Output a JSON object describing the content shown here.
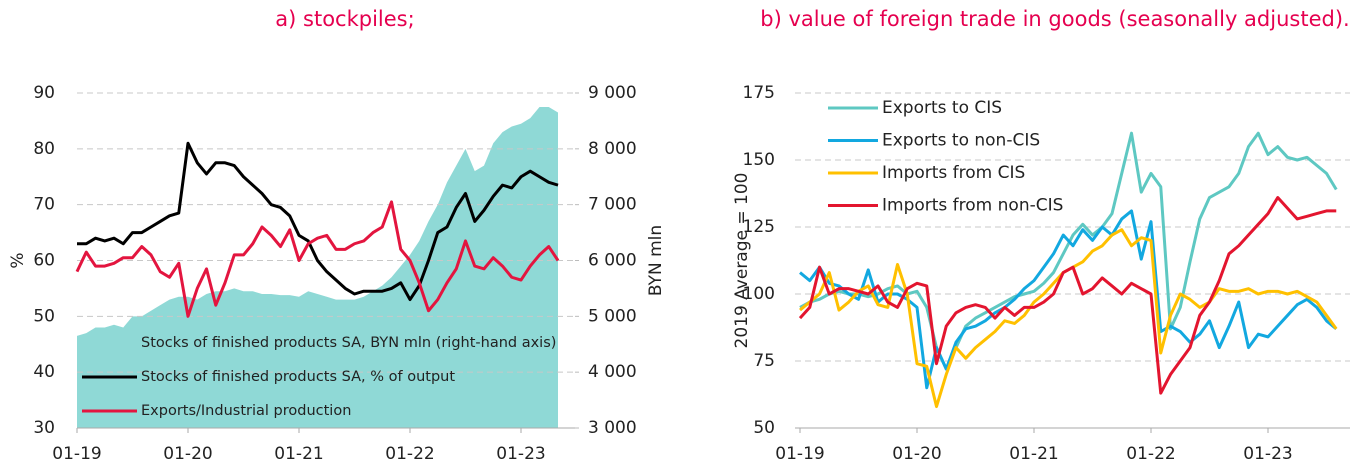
{
  "chart_data": [
    {
      "type": "line",
      "title": "a) stockpiles;",
      "ylabel": "%",
      "y2label": "BYN mln",
      "categories": [
        "01-19",
        null,
        null,
        null,
        null,
        null,
        null,
        null,
        null,
        null,
        null,
        null,
        "01-20",
        null,
        null,
        null,
        null,
        null,
        null,
        null,
        null,
        null,
        null,
        null,
        "01-21",
        null,
        null,
        null,
        null,
        null,
        null,
        null,
        null,
        null,
        null,
        null,
        "01-22",
        null,
        null,
        null,
        null,
        null,
        null,
        null,
        null,
        null,
        null,
        null,
        "01-23",
        null,
        null,
        null,
        null
      ],
      "ylim": [
        30,
        90
      ],
      "yticks": [
        30,
        40,
        50,
        60,
        70,
        80,
        90
      ],
      "y2lim": [
        3000,
        9000
      ],
      "y2ticks": [
        {
          "value": 3000,
          "label": "3 000"
        },
        {
          "value": 4000,
          "label": "4 000"
        },
        {
          "value": 5000,
          "label": "5 000"
        },
        {
          "value": 6000,
          "label": "6 000"
        },
        {
          "value": 7000,
          "label": "7 000"
        },
        {
          "value": 8000,
          "label": "8 000"
        },
        {
          "value": 9000,
          "label": "9 000"
        }
      ],
      "grid": true,
      "legend": "lower left",
      "series": [
        {
          "name": "Stocks of finished products SA, BYN mln (right-hand axis)",
          "kind": "area",
          "axis": "y2",
          "color": "#8fd9d6",
          "values": [
            4650,
            4700,
            4800,
            4800,
            4850,
            4800,
            5000,
            5000,
            5100,
            5200,
            5300,
            5350,
            5350,
            5300,
            5400,
            5450,
            5450,
            5500,
            5450,
            5450,
            5400,
            5400,
            5380,
            5380,
            5350,
            5450,
            5400,
            5350,
            5300,
            5300,
            5300,
            5350,
            5450,
            5550,
            5700,
            5900,
            6100,
            6350,
            6700,
            7000,
            7400,
            7700,
            8000,
            7600,
            7700,
            8100,
            8300,
            8400,
            8450,
            8550,
            8750,
            8750,
            8650
          ]
        },
        {
          "name": "Stocks of finished products SA, % of output",
          "kind": "line",
          "color": "#000000",
          "values": [
            63,
            63,
            64,
            63.5,
            64,
            63,
            65,
            65,
            66,
            67,
            68,
            68.5,
            81,
            77.5,
            75.5,
            77.5,
            77.5,
            77,
            75,
            73.5,
            72,
            70,
            69.5,
            68,
            64.5,
            63.5,
            60,
            58,
            56.5,
            55,
            54,
            54.5,
            54.5,
            54.5,
            55,
            56,
            53,
            55.5,
            60,
            65,
            66,
            69.5,
            72,
            67,
            69,
            71.5,
            73.5,
            73,
            75,
            76,
            75,
            74,
            73.5
          ]
        },
        {
          "name": "Exports/Industrial production",
          "kind": "line",
          "color": "#e3153f",
          "values": [
            58,
            61.5,
            59,
            59,
            59.5,
            60.5,
            60.5,
            62.5,
            61,
            58,
            57,
            59.5,
            50,
            55,
            58.5,
            52,
            56,
            61,
            61,
            63,
            66,
            64.5,
            62.5,
            65.5,
            60,
            63,
            64,
            64.5,
            62,
            62,
            63,
            63.5,
            65,
            66,
            70.5,
            62,
            60,
            56,
            51,
            53,
            56,
            58.5,
            63.5,
            59,
            58.5,
            60.5,
            59,
            57,
            56.5,
            59,
            61,
            62.5,
            60
          ]
        }
      ]
    },
    {
      "type": "line",
      "title": "b) value of foreign trade in goods (seasonally adjusted).",
      "ylabel": "2019 Average = 100",
      "categories": [
        "01-19",
        null,
        null,
        null,
        null,
        null,
        null,
        null,
        null,
        null,
        null,
        null,
        "01-20",
        null,
        null,
        null,
        null,
        null,
        null,
        null,
        null,
        null,
        null,
        null,
        "01-21",
        null,
        null,
        null,
        null,
        null,
        null,
        null,
        null,
        null,
        null,
        null,
        "01-22",
        null,
        null,
        null,
        null,
        null,
        null,
        null,
        null,
        null,
        null,
        null,
        "01-23",
        null,
        null,
        null,
        null,
        null,
        null,
        null
      ],
      "ylim": [
        50,
        175
      ],
      "yticks": [
        50,
        75,
        100,
        125,
        150,
        175
      ],
      "grid": true,
      "legend": "upper left",
      "series": [
        {
          "name": "Exports to CIS",
          "kind": "line",
          "color": "#5ec8c2",
          "values": [
            95,
            97,
            98,
            100,
            101,
            100,
            100,
            99,
            100,
            102,
            103,
            100,
            101,
            95,
            80,
            72,
            80,
            88,
            91,
            93,
            95,
            97,
            99,
            100,
            101,
            104,
            108,
            115,
            122,
            126,
            122,
            125,
            130,
            145,
            160,
            138,
            145,
            140,
            87,
            95,
            112,
            128,
            136,
            138,
            140,
            145,
            155,
            160,
            152,
            155,
            151,
            150,
            151,
            148,
            145,
            139
          ]
        },
        {
          "name": "Exports to non-CIS",
          "kind": "line",
          "color": "#12a8e0",
          "values": [
            108,
            105,
            110,
            104,
            103,
            100,
            98,
            109,
            97,
            100,
            100,
            98,
            95,
            65,
            80,
            72,
            82,
            87,
            88,
            90,
            93,
            95,
            98,
            102,
            105,
            110,
            115,
            122,
            118,
            124,
            120,
            125,
            122,
            128,
            131,
            113,
            127,
            86,
            88,
            86,
            82,
            85,
            90,
            80,
            88,
            97,
            80,
            85,
            84,
            88,
            92,
            96,
            98,
            95,
            90,
            87
          ]
        },
        {
          "name": "Imports from CIS",
          "kind": "line",
          "color": "#ffc000",
          "values": [
            94,
            97,
            100,
            108,
            94,
            97,
            101,
            103,
            96,
            95,
            111,
            100,
            74,
            73,
            58,
            70,
            80,
            76,
            80,
            83,
            86,
            90,
            89,
            92,
            97,
            100,
            104,
            108,
            110,
            112,
            116,
            118,
            122,
            124,
            118,
            121,
            120,
            78,
            92,
            100,
            98,
            95,
            97,
            102,
            101,
            101,
            102,
            100,
            101,
            101,
            100,
            101,
            99,
            97,
            92,
            87
          ]
        },
        {
          "name": "Imports from non-CIS",
          "kind": "line",
          "color": "#e3152f",
          "values": [
            91,
            95,
            110,
            100,
            102,
            102,
            101,
            100,
            103,
            97,
            95,
            102,
            104,
            103,
            74,
            88,
            93,
            95,
            96,
            95,
            91,
            95,
            92,
            95,
            95,
            97,
            100,
            108,
            110,
            100,
            102,
            106,
            103,
            100,
            104,
            102,
            100,
            63,
            70,
            75,
            80,
            92,
            97,
            105,
            115,
            118,
            122,
            126,
            130,
            136,
            132,
            128,
            129,
            130,
            131,
            131
          ]
        }
      ]
    }
  ]
}
